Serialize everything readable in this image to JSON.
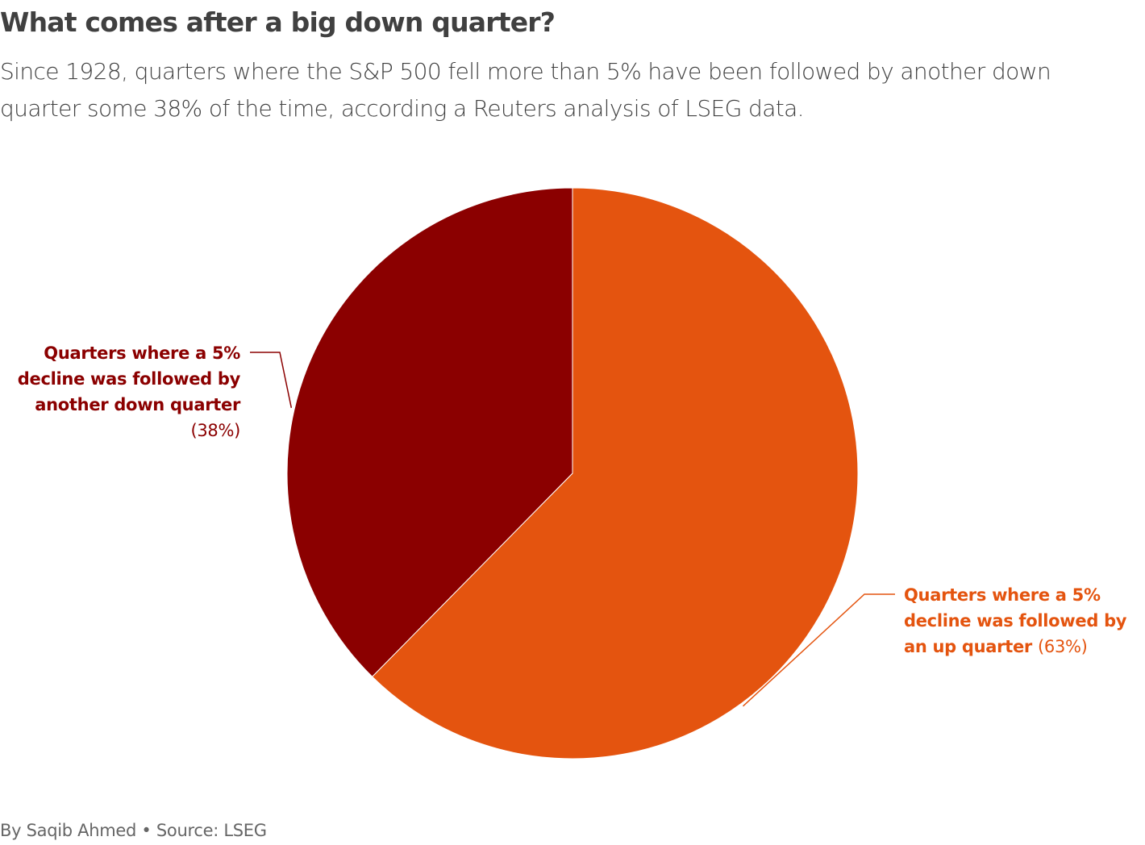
{
  "header": {
    "title": "What comes after a big down quarter?",
    "subtitle_lines": [
      "Since 1928, quarters where the S&P 500 fell more than 5% have been followed by another down",
      "quarter some 38% of the time, according a Reuters analysis of LSEG data."
    ]
  },
  "footer": {
    "credit": "By Saqib Ahmed • Source: LSEG"
  },
  "chart_data": {
    "type": "pie",
    "title": "What comes after a big down quarter?",
    "start_angle_deg": 0,
    "direction": "clockwise",
    "slices": [
      {
        "label_lines": [
          "Quarters where a 5%",
          "decline was followed by",
          "an up quarter"
        ],
        "label": "Quarters where a 5% decline was followed by an up quarter",
        "value": 63,
        "value_label": "(63%)",
        "color": "#e4540f",
        "label_position": "right"
      },
      {
        "label_lines": [
          "Quarters where a 5%",
          "decline was followed by",
          "another down quarter"
        ],
        "label": "Quarters where a 5% decline was followed by another down quarter",
        "value": 38,
        "value_label": "(38%)",
        "color": "#8b0000",
        "label_position": "left"
      }
    ]
  }
}
